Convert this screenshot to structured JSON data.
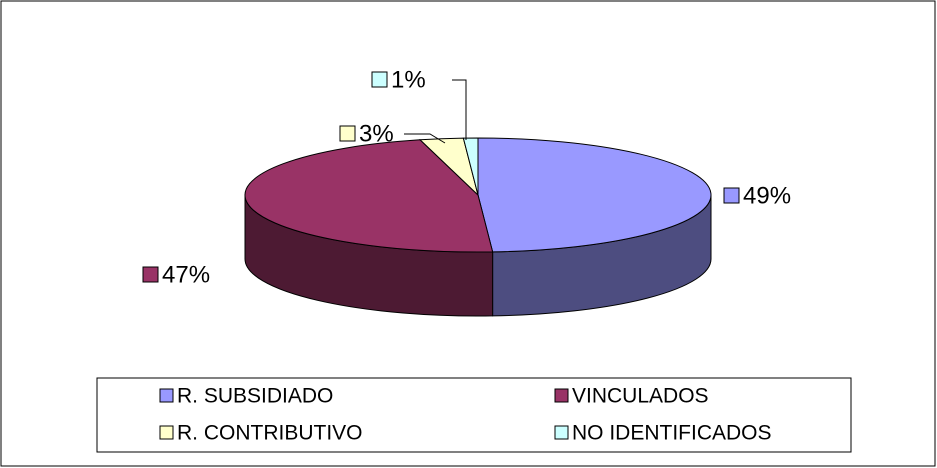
{
  "chart_data": {
    "type": "pie",
    "style": "3d",
    "categories": [
      "R. SUBSIDIADO",
      "VINCULADOS",
      "R. CONTRIBUTIVO",
      "NO IDENTIFICADOS"
    ],
    "values": [
      49,
      47,
      3,
      1
    ],
    "value_labels": [
      "49%",
      "47%",
      "3%",
      "1%"
    ],
    "colors": [
      "#9999ff",
      "#993366",
      "#ffffcc",
      "#ccffff"
    ],
    "legend": "bottom"
  }
}
